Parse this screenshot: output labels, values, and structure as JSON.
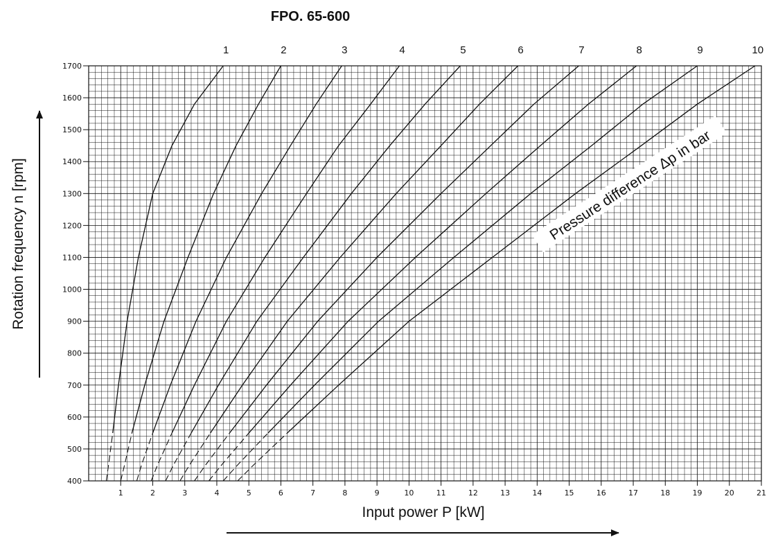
{
  "chart_data": {
    "type": "line",
    "title": "FPO. 65-600",
    "xlabel": "Input power P [kW]",
    "ylabel": "Rotation frequency n [rpm]",
    "annotation": "Pressure difference Δp in bar",
    "xlim": [
      0,
      21
    ],
    "ylim": [
      400,
      1700
    ],
    "x_ticks": [
      1,
      2,
      3,
      4,
      5,
      6,
      7,
      8,
      9,
      10,
      11,
      12,
      13,
      14,
      15,
      16,
      17,
      18,
      19,
      20,
      21
    ],
    "y_ticks": [
      400,
      500,
      600,
      700,
      800,
      900,
      1000,
      1100,
      1200,
      1300,
      1400,
      1500,
      1600,
      1700
    ],
    "grid": true,
    "series": [
      {
        "name": "1",
        "points": [
          [
            0.55,
            400
          ],
          [
            0.62,
            450
          ],
          [
            0.75,
            550
          ],
          [
            0.93,
            700
          ],
          [
            1.2,
            900
          ],
          [
            1.55,
            1100
          ],
          [
            2.0,
            1300
          ],
          [
            2.6,
            1450
          ],
          [
            3.3,
            1580
          ],
          [
            4.2,
            1700
          ]
        ]
      },
      {
        "name": "2",
        "points": [
          [
            1.0,
            400
          ],
          [
            1.12,
            450
          ],
          [
            1.35,
            550
          ],
          [
            1.75,
            700
          ],
          [
            2.35,
            900
          ],
          [
            3.1,
            1100
          ],
          [
            3.9,
            1300
          ],
          [
            4.6,
            1450
          ],
          [
            5.3,
            1580
          ],
          [
            6.0,
            1700
          ]
        ]
      },
      {
        "name": "3",
        "points": [
          [
            1.5,
            400
          ],
          [
            1.65,
            450
          ],
          [
            2.0,
            550
          ],
          [
            2.55,
            700
          ],
          [
            3.35,
            900
          ],
          [
            4.3,
            1100
          ],
          [
            5.4,
            1300
          ],
          [
            6.3,
            1450
          ],
          [
            7.1,
            1580
          ],
          [
            7.9,
            1700
          ]
        ]
      },
      {
        "name": "4",
        "points": [
          [
            1.95,
            400
          ],
          [
            2.15,
            450
          ],
          [
            2.6,
            550
          ],
          [
            3.3,
            700
          ],
          [
            4.3,
            900
          ],
          [
            5.5,
            1100
          ],
          [
            6.8,
            1300
          ],
          [
            7.8,
            1450
          ],
          [
            8.8,
            1580
          ],
          [
            9.7,
            1700
          ]
        ]
      },
      {
        "name": "5",
        "points": [
          [
            2.4,
            400
          ],
          [
            2.65,
            450
          ],
          [
            3.2,
            550
          ],
          [
            4.05,
            700
          ],
          [
            5.25,
            900
          ],
          [
            6.7,
            1100
          ],
          [
            8.2,
            1300
          ],
          [
            9.4,
            1450
          ],
          [
            10.5,
            1580
          ],
          [
            11.6,
            1700
          ]
        ]
      },
      {
        "name": "6",
        "points": [
          [
            2.85,
            400
          ],
          [
            3.15,
            450
          ],
          [
            3.8,
            550
          ],
          [
            4.8,
            700
          ],
          [
            6.2,
            900
          ],
          [
            7.85,
            1100
          ],
          [
            9.6,
            1300
          ],
          [
            11.0,
            1450
          ],
          [
            12.2,
            1580
          ],
          [
            13.4,
            1700
          ]
        ]
      },
      {
        "name": "7",
        "points": [
          [
            3.3,
            400
          ],
          [
            3.65,
            450
          ],
          [
            4.4,
            550
          ],
          [
            5.55,
            700
          ],
          [
            7.15,
            900
          ],
          [
            9.0,
            1100
          ],
          [
            11.0,
            1300
          ],
          [
            12.55,
            1450
          ],
          [
            13.9,
            1580
          ],
          [
            15.3,
            1700
          ]
        ]
      },
      {
        "name": "8",
        "points": [
          [
            3.75,
            400
          ],
          [
            4.15,
            450
          ],
          [
            5.0,
            550
          ],
          [
            6.3,
            700
          ],
          [
            8.1,
            900
          ],
          [
            10.2,
            1100
          ],
          [
            12.4,
            1300
          ],
          [
            14.1,
            1450
          ],
          [
            15.6,
            1580
          ],
          [
            17.1,
            1700
          ]
        ]
      },
      {
        "name": "9",
        "points": [
          [
            4.2,
            400
          ],
          [
            4.65,
            450
          ],
          [
            5.6,
            550
          ],
          [
            7.05,
            700
          ],
          [
            9.05,
            900
          ],
          [
            11.4,
            1100
          ],
          [
            13.8,
            1300
          ],
          [
            15.7,
            1450
          ],
          [
            17.3,
            1580
          ],
          [
            19.0,
            1700
          ]
        ]
      },
      {
        "name": "10",
        "points": [
          [
            4.65,
            400
          ],
          [
            5.15,
            450
          ],
          [
            6.2,
            550
          ],
          [
            7.8,
            700
          ],
          [
            10.0,
            900
          ],
          [
            12.6,
            1100
          ],
          [
            15.2,
            1300
          ],
          [
            17.25,
            1450
          ],
          [
            19.0,
            1580
          ],
          [
            20.8,
            1700
          ]
        ]
      }
    ]
  }
}
